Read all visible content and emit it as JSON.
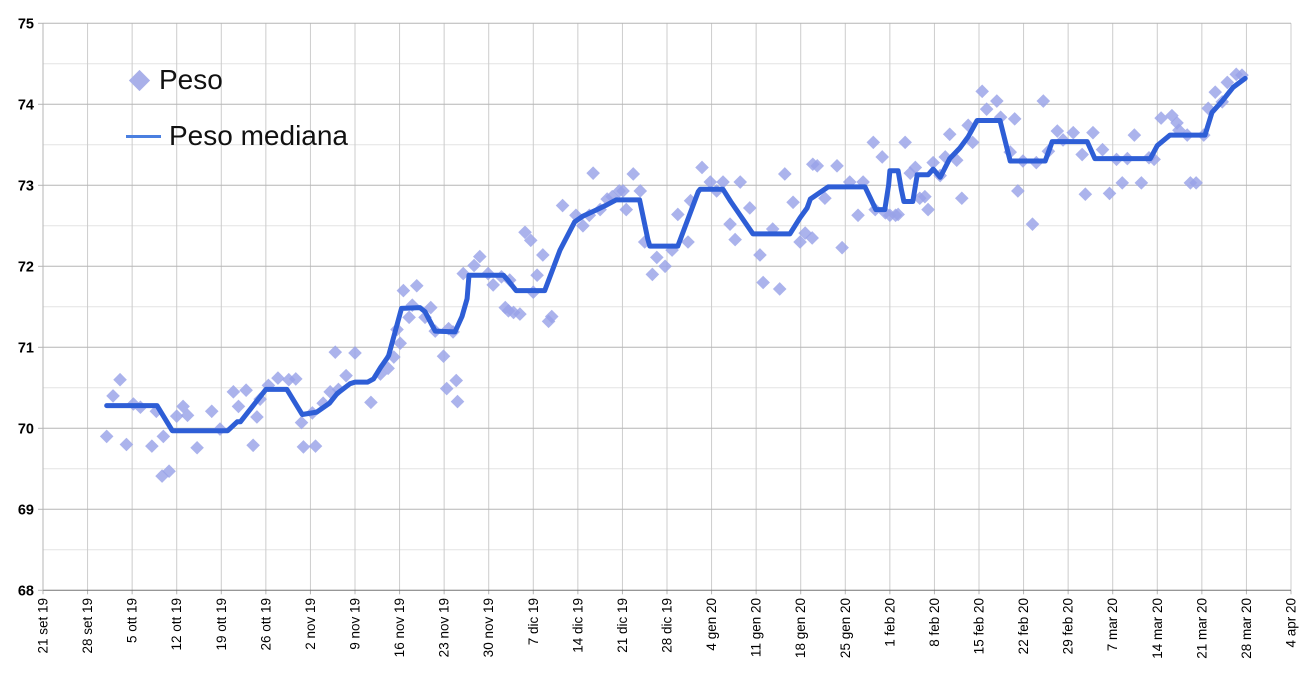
{
  "legend": {
    "peso_label": "Peso",
    "peso_mediana_label": "Peso mediana"
  },
  "colors": {
    "background": "#ffffff",
    "scatter_diamond": "#99a2e8",
    "median_line": "#2e5ed6",
    "legend_line": "#4a7fe0",
    "legend_diamond": "#a9b0e9",
    "grid_major_h": "#b5b5b5",
    "grid_minor_h": "#e4e4e4",
    "grid_vertical": "#cccccc",
    "axis_bottom": "#757575",
    "axis_text": "#000000"
  },
  "chart_data": {
    "type": "scatter",
    "title": "",
    "xlabel": "",
    "ylabel": "",
    "grid": true,
    "legend_position": "top-left-inside",
    "x_axis": {
      "tick_labels": [
        "21 set 19",
        "28 set 19",
        "5 ott 19",
        "12 ott 19",
        "19 ott 19",
        "26 ott 19",
        "2 nov 19",
        "9 nov 19",
        "16 nov 19",
        "23 nov 19",
        "30 nov 19",
        "7 dic 19",
        "14 dic 19",
        "21 dic 19",
        "28 dic 19",
        "4 gen 20",
        "11 gen 20",
        "18 gen 20",
        "25 gen 20",
        "1 feb 20",
        "8 feb 20",
        "15 feb 20",
        "22 feb 20",
        "29 feb 20",
        "7 mar 20",
        "14 mar 20",
        "21 mar 20",
        "28 mar 20",
        "4 apr 20"
      ],
      "days_per_tick": 7,
      "domain_days": [
        0,
        196
      ],
      "note": "x values below are day offsets from the first tick (21 set 19)"
    },
    "y_axis": {
      "tick_labels": [
        "68",
        "69",
        "70",
        "71",
        "72",
        "73",
        "74",
        "75"
      ],
      "ylim": [
        68,
        75
      ],
      "minor_step": 0.5
    },
    "series": [
      {
        "name": "Peso",
        "type": "scatter",
        "marker": "diamond",
        "color": "#99a2e8",
        "points": [
          [
            10,
            69.9
          ],
          [
            11,
            70.4
          ],
          [
            12.1,
            70.6
          ],
          [
            13.1,
            69.8
          ],
          [
            14.2,
            70.3
          ],
          [
            15.3,
            70.26
          ],
          [
            17.1,
            69.78
          ],
          [
            17.8,
            70.21
          ],
          [
            18.7,
            69.41
          ],
          [
            18.9,
            69.9
          ],
          [
            19.8,
            69.47
          ],
          [
            21,
            70.15
          ],
          [
            22,
            70.27
          ],
          [
            22.7,
            70.16
          ],
          [
            24.2,
            69.76
          ],
          [
            26.5,
            70.21
          ],
          [
            27.8,
            69.99
          ],
          [
            29.9,
            70.45
          ],
          [
            30.7,
            70.27
          ],
          [
            31.9,
            70.47
          ],
          [
            33,
            69.79
          ],
          [
            33.6,
            70.14
          ],
          [
            34.1,
            70.36
          ],
          [
            35.4,
            70.53
          ],
          [
            36.9,
            70.62
          ],
          [
            38.6,
            70.6
          ],
          [
            39.7,
            70.61
          ],
          [
            40.6,
            70.07
          ],
          [
            40.9,
            69.77
          ],
          [
            42.3,
            70.19
          ],
          [
            42.8,
            69.78
          ],
          [
            44,
            70.31
          ],
          [
            45.1,
            70.45
          ],
          [
            45.9,
            70.94
          ],
          [
            46.4,
            70.48
          ],
          [
            47.6,
            70.65
          ],
          [
            49,
            70.93
          ],
          [
            51.5,
            70.32
          ],
          [
            53,
            70.67
          ],
          [
            54.2,
            70.74
          ],
          [
            55.1,
            70.88
          ],
          [
            55.6,
            71.22
          ],
          [
            56.1,
            71.05
          ],
          [
            56.6,
            71.7
          ],
          [
            57.5,
            71.37
          ],
          [
            58,
            71.52
          ],
          [
            58.7,
            71.76
          ],
          [
            60,
            71.37
          ],
          [
            60.9,
            71.49
          ],
          [
            61.6,
            71.2
          ],
          [
            62.9,
            70.89
          ],
          [
            63.4,
            70.49
          ],
          [
            63.7,
            71.23
          ],
          [
            64.4,
            71.19
          ],
          [
            64.9,
            70.59
          ],
          [
            65.1,
            70.33
          ],
          [
            66,
            71.91
          ],
          [
            67.7,
            72.01
          ],
          [
            68.6,
            72.12
          ],
          [
            69.9,
            71.91
          ],
          [
            70.7,
            71.77
          ],
          [
            72,
            71.87
          ],
          [
            72.6,
            71.49
          ],
          [
            73.1,
            71.45
          ],
          [
            73.3,
            71.83
          ],
          [
            73.9,
            71.43
          ],
          [
            74.9,
            71.41
          ],
          [
            75.7,
            72.42
          ],
          [
            76.6,
            72.32
          ],
          [
            77,
            71.68
          ],
          [
            77.6,
            71.89
          ],
          [
            78.5,
            72.14
          ],
          [
            79.4,
            71.32
          ],
          [
            79.9,
            71.38
          ],
          [
            81.6,
            72.75
          ],
          [
            83.7,
            72.63
          ],
          [
            84.8,
            72.5
          ],
          [
            85.8,
            72.63
          ],
          [
            86.4,
            73.15
          ],
          [
            87.5,
            72.7
          ],
          [
            88.6,
            72.83
          ],
          [
            89.4,
            72.86
          ],
          [
            90.5,
            72.93
          ],
          [
            91.1,
            72.93
          ],
          [
            91.6,
            72.7
          ],
          [
            92.7,
            73.14
          ],
          [
            93.8,
            72.93
          ],
          [
            94.5,
            72.3
          ],
          [
            95.7,
            71.9
          ],
          [
            96.4,
            72.11
          ],
          [
            97.7,
            72.0
          ],
          [
            98.8,
            72.2
          ],
          [
            99.7,
            72.64
          ],
          [
            101.3,
            72.3
          ],
          [
            101.7,
            72.81
          ],
          [
            103.5,
            73.22
          ],
          [
            104.8,
            73.04
          ],
          [
            105.8,
            72.93
          ],
          [
            106.8,
            73.04
          ],
          [
            107.9,
            72.52
          ],
          [
            108.7,
            72.33
          ],
          [
            109.5,
            73.04
          ],
          [
            111,
            72.72
          ],
          [
            112.6,
            72.14
          ],
          [
            113.1,
            71.8
          ],
          [
            114.6,
            72.46
          ],
          [
            115.7,
            71.72
          ],
          [
            116.5,
            73.14
          ],
          [
            117.8,
            72.79
          ],
          [
            118.9,
            72.3
          ],
          [
            119.7,
            72.41
          ],
          [
            120.8,
            72.35
          ],
          [
            120.9,
            73.26
          ],
          [
            121.6,
            73.24
          ],
          [
            122.8,
            72.84
          ],
          [
            124.7,
            73.24
          ],
          [
            125.5,
            72.23
          ],
          [
            126.7,
            73.04
          ],
          [
            128,
            72.63
          ],
          [
            128.8,
            73.04
          ],
          [
            130.4,
            73.53
          ],
          [
            130.7,
            72.7
          ],
          [
            131.8,
            73.35
          ],
          [
            132.3,
            72.66
          ],
          [
            133,
            72.63
          ],
          [
            133.9,
            72.63
          ],
          [
            134.3,
            72.64
          ],
          [
            135.4,
            73.53
          ],
          [
            136.2,
            73.15
          ],
          [
            137,
            73.22
          ],
          [
            137.7,
            72.84
          ],
          [
            138.5,
            72.86
          ],
          [
            139,
            72.7
          ],
          [
            139.8,
            73.28
          ],
          [
            140.9,
            73.12
          ],
          [
            141.7,
            73.35
          ],
          [
            142.4,
            73.63
          ],
          [
            143.5,
            73.31
          ],
          [
            144.3,
            72.84
          ],
          [
            145.3,
            73.74
          ],
          [
            146,
            73.53
          ],
          [
            147.5,
            74.16
          ],
          [
            148.2,
            73.94
          ],
          [
            149.8,
            74.04
          ],
          [
            150.4,
            73.84
          ],
          [
            151.9,
            73.41
          ],
          [
            152.6,
            73.82
          ],
          [
            153.1,
            72.93
          ],
          [
            153.9,
            73.3
          ],
          [
            155.4,
            72.52
          ],
          [
            156,
            73.28
          ],
          [
            157.1,
            74.04
          ],
          [
            157.9,
            73.42
          ],
          [
            159.3,
            73.67
          ],
          [
            160.2,
            73.56
          ],
          [
            161.8,
            73.65
          ],
          [
            163.2,
            73.38
          ],
          [
            163.7,
            72.89
          ],
          [
            164.9,
            73.65
          ],
          [
            166.4,
            73.44
          ],
          [
            167.5,
            72.9
          ],
          [
            168.6,
            73.32
          ],
          [
            169.5,
            73.03
          ],
          [
            170.3,
            73.33
          ],
          [
            171.4,
            73.62
          ],
          [
            172.5,
            73.03
          ],
          [
            173.7,
            73.34
          ],
          [
            174.5,
            73.32
          ],
          [
            175.6,
            73.83
          ],
          [
            177.3,
            73.86
          ],
          [
            178.1,
            73.77
          ],
          [
            178.4,
            73.68
          ],
          [
            179.7,
            73.62
          ],
          [
            180.2,
            73.03
          ],
          [
            181.1,
            73.03
          ],
          [
            182.3,
            73.62
          ],
          [
            183,
            73.95
          ],
          [
            184.1,
            74.15
          ],
          [
            185.2,
            74.03
          ],
          [
            186,
            74.27
          ],
          [
            187.4,
            74.37
          ],
          [
            188.3,
            74.36
          ]
        ]
      },
      {
        "name": "Peso mediana",
        "type": "line",
        "color": "#2e5ed6",
        "points": [
          [
            10,
            70.28
          ],
          [
            17.9,
            70.28
          ],
          [
            20.3,
            69.97
          ],
          [
            29,
            69.97
          ],
          [
            30.5,
            70.08
          ],
          [
            31,
            70.08
          ],
          [
            35,
            70.48
          ],
          [
            38.3,
            70.48
          ],
          [
            40.7,
            70.17
          ],
          [
            43,
            70.2
          ],
          [
            45,
            70.31
          ],
          [
            46.2,
            70.43
          ],
          [
            48.2,
            70.55
          ],
          [
            49,
            70.57
          ],
          [
            51,
            70.57
          ],
          [
            51.9,
            70.61
          ],
          [
            53,
            70.75
          ],
          [
            54,
            70.86
          ],
          [
            54.3,
            70.9
          ],
          [
            56.3,
            71.48
          ],
          [
            59.2,
            71.49
          ],
          [
            60,
            71.44
          ],
          [
            61.6,
            71.2
          ],
          [
            64.7,
            71.19
          ],
          [
            65.8,
            71.38
          ],
          [
            66.6,
            71.6
          ],
          [
            66.9,
            71.89
          ],
          [
            72.3,
            71.89
          ],
          [
            73,
            71.83
          ],
          [
            74.3,
            71.7
          ],
          [
            78.8,
            71.7
          ],
          [
            81.2,
            72.2
          ],
          [
            83.5,
            72.55
          ],
          [
            84.8,
            72.62
          ],
          [
            87,
            72.7
          ],
          [
            88.6,
            72.76
          ],
          [
            90,
            72.82
          ],
          [
            93.7,
            72.82
          ],
          [
            95,
            72.33
          ],
          [
            95.3,
            72.25
          ],
          [
            99.7,
            72.25
          ],
          [
            102.9,
            72.92
          ],
          [
            103.2,
            72.95
          ],
          [
            106.8,
            72.95
          ],
          [
            108,
            72.8
          ],
          [
            111.5,
            72.4
          ],
          [
            117.3,
            72.4
          ],
          [
            118.9,
            72.6
          ],
          [
            120,
            72.72
          ],
          [
            120.5,
            72.83
          ],
          [
            123.3,
            72.98
          ],
          [
            129.1,
            72.98
          ],
          [
            129.9,
            72.85
          ],
          [
            130.8,
            72.7
          ],
          [
            132.2,
            72.7
          ],
          [
            132.8,
            73.0
          ],
          [
            133,
            73.18
          ],
          [
            134.3,
            73.18
          ],
          [
            134.8,
            72.95
          ],
          [
            135.2,
            72.8
          ],
          [
            136.6,
            72.8
          ],
          [
            137.3,
            73.13
          ],
          [
            139,
            73.13
          ],
          [
            139.8,
            73.2
          ],
          [
            140.9,
            73.1
          ],
          [
            142.4,
            73.33
          ],
          [
            144,
            73.46
          ],
          [
            145.3,
            73.6
          ],
          [
            146.7,
            73.8
          ],
          [
            150.3,
            73.8
          ],
          [
            151.9,
            73.3
          ],
          [
            157.4,
            73.3
          ],
          [
            158.5,
            73.54
          ],
          [
            164,
            73.54
          ],
          [
            165.2,
            73.33
          ],
          [
            173.9,
            73.33
          ],
          [
            175,
            73.49
          ],
          [
            177,
            73.62
          ],
          [
            182.5,
            73.62
          ],
          [
            183.6,
            73.9
          ],
          [
            185.2,
            74.04
          ],
          [
            186.9,
            74.21
          ],
          [
            188.8,
            74.32
          ]
        ]
      }
    ]
  }
}
